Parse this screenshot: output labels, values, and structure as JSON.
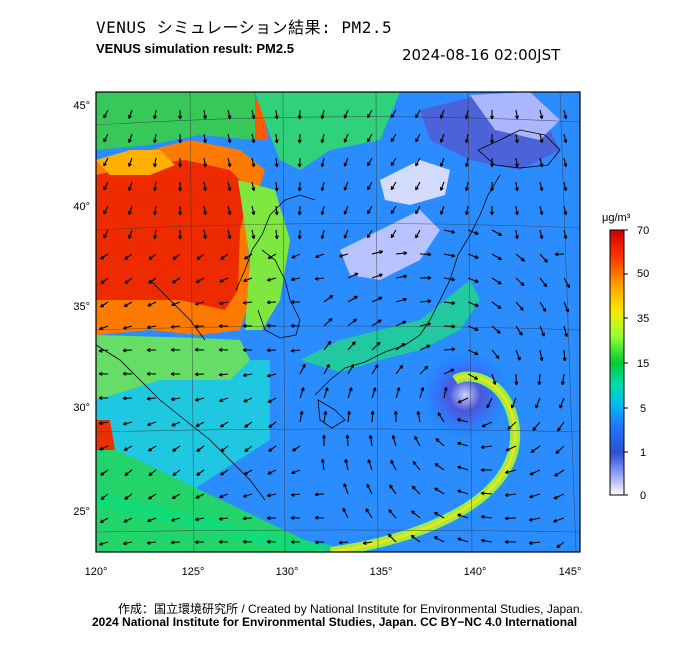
{
  "header": {
    "title_ja": "VENUS シミュレーション結果: PM2.5",
    "title_en": "VENUS simulation result: PM2.5",
    "timestamp": "2024-08-16 02:00JST"
  },
  "map": {
    "lat_ticks": [
      "45°",
      "40°",
      "35°",
      "30°",
      "25°"
    ],
    "lon_ticks": [
      "120°",
      "125°",
      "130°",
      "135°",
      "140°",
      "145°"
    ]
  },
  "colorbar": {
    "unit": "μg/m³",
    "ticks": [
      "70",
      "50",
      "35",
      "15",
      "5",
      "1",
      "0"
    ],
    "colors": [
      "#cc0000",
      "#ff3300",
      "#ff9900",
      "#ffe600",
      "#99ff33",
      "#00cc33",
      "#00ddaa",
      "#00bbee",
      "#1e78ff",
      "#2a50d0",
      "#9fa8ff",
      "#ffffff"
    ]
  },
  "footer": {
    "credit_line1": "作成：国立環境研究所 / Created by National Institute for Environmental Studies, Japan.",
    "credit_line2": "2024 National Institute for Environmental Studies, Japan. CC BY−NC 4.0 International"
  }
}
